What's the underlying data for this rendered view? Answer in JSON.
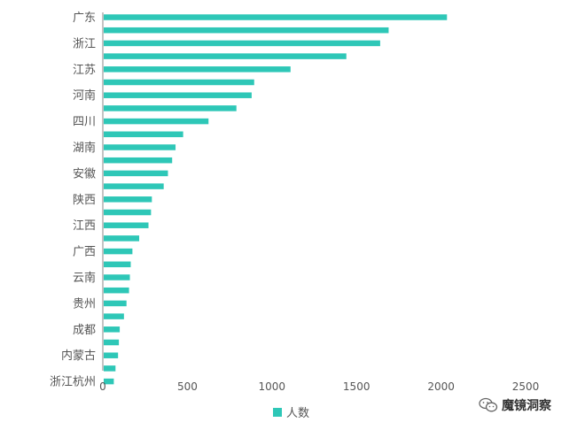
{
  "chart_data": {
    "type": "bar",
    "orientation": "horizontal",
    "categories": [
      "广东",
      "",
      "浙江",
      "",
      "江苏",
      "",
      "河南",
      "",
      "四川",
      "",
      "湖南",
      "",
      "安徽",
      "",
      "陕西",
      "",
      "江西",
      "",
      "广西",
      "",
      "云南",
      "",
      "贵州",
      "",
      "成都",
      "",
      "内蒙古",
      "",
      "浙江杭州",
      ""
    ],
    "series": [
      {
        "name": "人数",
        "color": "#2ec7b7",
        "values": [
          2035,
          1690,
          1640,
          1440,
          1110,
          895,
          880,
          790,
          625,
          475,
          430,
          410,
          385,
          360,
          290,
          285,
          270,
          215,
          175,
          165,
          160,
          155,
          140,
          125,
          100,
          95,
          90,
          75,
          65,
          0
        ]
      }
    ],
    "xlim": [
      0,
      2500
    ],
    "xticks": [
      0,
      500,
      1000,
      1500,
      2000,
      2500
    ],
    "grid": false,
    "legend_position": "bottom"
  },
  "legend": {
    "label": "人数",
    "color": "#2ec7b7"
  },
  "watermark": {
    "text": "魔镜洞察"
  }
}
